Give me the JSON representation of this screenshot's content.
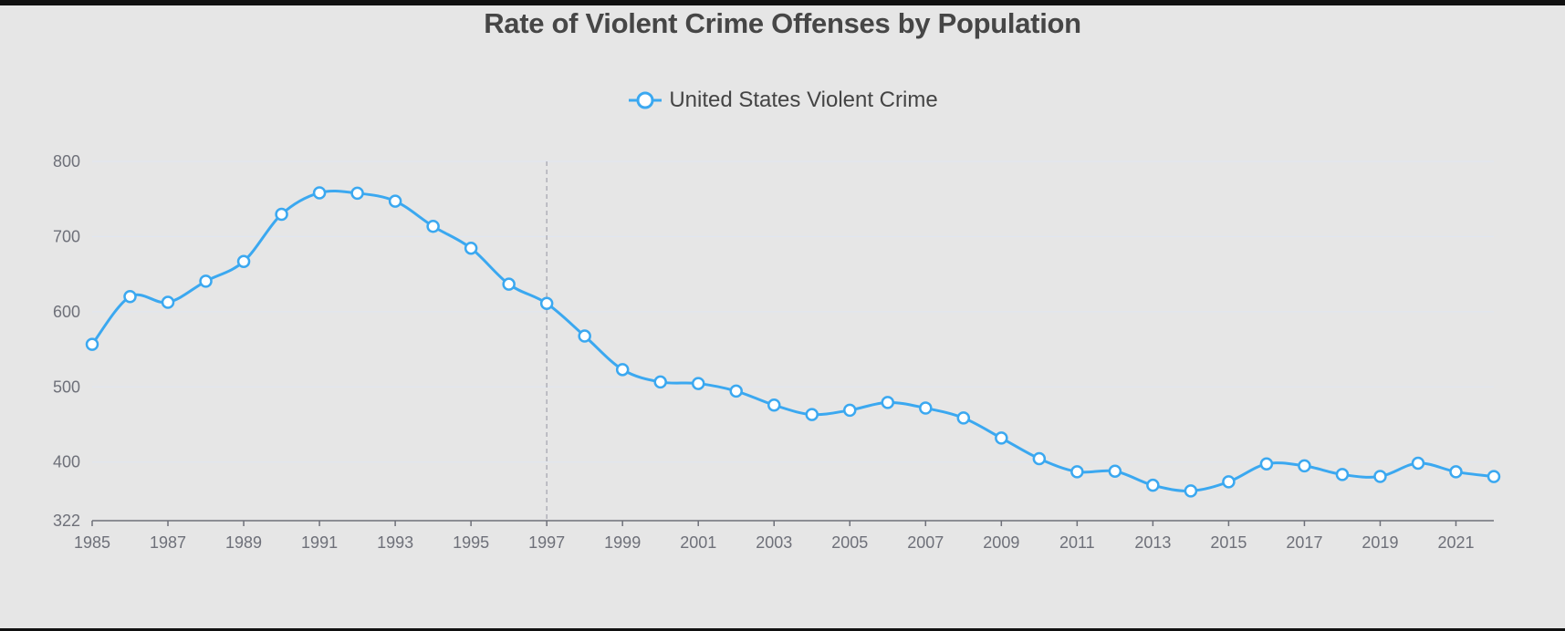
{
  "chart_data": {
    "type": "line",
    "title": "Rate of Violent Crime Offenses by Population",
    "legend": {
      "position": "top-center",
      "entries": [
        "United States Violent Crime"
      ]
    },
    "xlabel": "",
    "ylabel": "",
    "x": [
      1985,
      1986,
      1987,
      1988,
      1989,
      1990,
      1991,
      1992,
      1993,
      1994,
      1995,
      1996,
      1997,
      1998,
      1999,
      2000,
      2001,
      2002,
      2003,
      2004,
      2005,
      2006,
      2007,
      2008,
      2009,
      2010,
      2011,
      2012,
      2013,
      2014,
      2015,
      2016,
      2017,
      2018,
      2019,
      2020,
      2021,
      2022
    ],
    "x_tick_labels": [
      "1985",
      "1987",
      "1989",
      "1991",
      "1993",
      "1995",
      "1997",
      "1999",
      "2001",
      "2003",
      "2005",
      "2007",
      "2009",
      "2011",
      "2013",
      "2015",
      "2017",
      "2019",
      "2021"
    ],
    "y_tick_labels": [
      "322",
      "400",
      "500",
      "600",
      "700",
      "800"
    ],
    "ylim": [
      322,
      800
    ],
    "grid": true,
    "series": [
      {
        "name": "United States Violent Crime",
        "color": "#3ba8f0",
        "smooth": true,
        "values": [
          556.6,
          620.1,
          612.5,
          640.6,
          666.9,
          729.6,
          758.2,
          757.7,
          747.1,
          713.6,
          684.5,
          636.6,
          611.0,
          567.6,
          523.0,
          506.5,
          504.5,
          494.4,
          475.8,
          463.2,
          469.0,
          479.3,
          471.8,
          458.6,
          431.9,
          404.5,
          387.1,
          387.8,
          369.1,
          361.6,
          373.7,
          397.5,
          394.9,
          383.4,
          380.8,
          398.5,
          387.0,
          380.7
        ]
      }
    ],
    "hover_pointer_x": 1997
  },
  "colors": {
    "background": "#e6e6e6",
    "line": "#3ba8f0",
    "axis": "#6e7079",
    "grid": "#e0e6f1",
    "pointer": "#b0b0b8"
  }
}
